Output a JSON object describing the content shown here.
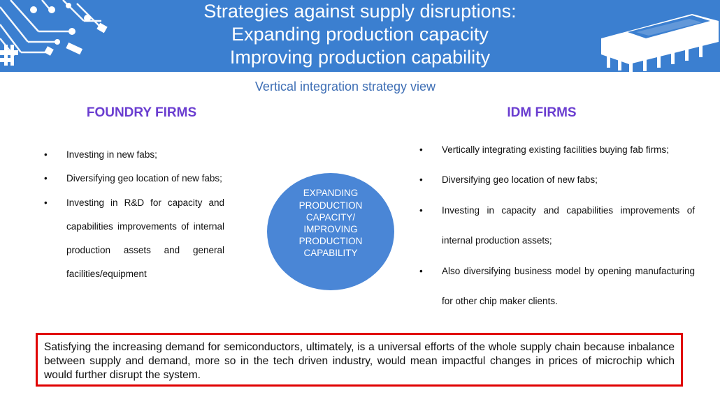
{
  "header": {
    "title_lines": [
      "Strategies against supply disruptions:",
      "Expanding production capacity",
      "Improving production capability"
    ],
    "background_color": "#3b7fd0",
    "decor_icons": [
      "circuit-board-icon",
      "microchip-icon"
    ]
  },
  "subtitle": "Vertical integration strategy view",
  "foundry": {
    "title": "FOUNDRY FIRMS",
    "bullet_marker": "•",
    "bullets": [
      "Investing in new fabs;",
      "Diversifying geo location of new fabs;",
      "Investing in R&D for capacity and capabilities improvements of internal production assets and general facilities/equipment"
    ]
  },
  "idm": {
    "title": "IDM FIRMS",
    "bullet_marker": "•",
    "bullets": [
      "Vertically integrating existing facilities buying fab firms;",
      "Diversifying geo location of new fabs;",
      "Investing in capacity and capabilities improvements of internal production assets;",
      "Also diversifying business model by opening manufacturing for other chip maker clients."
    ]
  },
  "center": {
    "lines": [
      "EXPANDING",
      "PRODUCTION",
      "CAPACITY/",
      "IMPROVING",
      "PRODUCTION",
      "CAPABILITY"
    ],
    "color": "#4a86d6"
  },
  "note": {
    "text": "Satisfying the increasing demand for semiconductors, ultimately, is a universal efforts of the whole supply chain because inbalance between supply and demand, more so in the tech driven industry, would mean impactful changes in prices of microchip which would further disrupt the system.",
    "border_color": "#e00000"
  },
  "colors": {
    "accent_title": "#6a3dd0",
    "subtitle": "#3f6fb5"
  }
}
